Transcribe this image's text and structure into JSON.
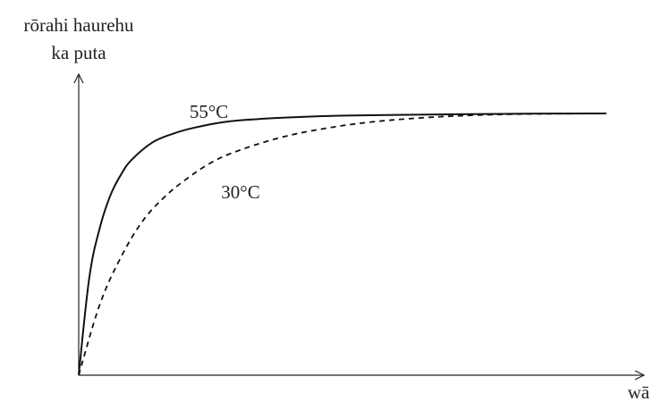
{
  "chart_data": {
    "type": "line",
    "title": "",
    "ylabel_lines": [
      "rōrahi haurehu",
      "ka puta"
    ],
    "xlabel": "wā",
    "xlim": [
      0,
      100
    ],
    "ylim": [
      0,
      100
    ],
    "x_ticks_shown": false,
    "y_ticks_shown": false,
    "grid": false,
    "series": [
      {
        "name": "55°C",
        "style": "solid",
        "color": "#111111",
        "x": [
          0,
          2,
          4,
          6,
          8,
          10,
          14,
          18,
          22,
          28,
          35,
          45,
          55,
          70,
          85,
          100
        ],
        "y": [
          0,
          33,
          50,
          61,
          68,
          73,
          79,
          82,
          84,
          86,
          87,
          87.8,
          88.2,
          88.5,
          88.7,
          88.8
        ]
      },
      {
        "name": "30°C",
        "style": "dashed",
        "color": "#111111",
        "x": [
          0,
          4,
          8,
          12,
          16,
          20,
          25,
          30,
          38,
          46,
          55,
          65,
          75,
          85,
          100
        ],
        "y": [
          0,
          24,
          40,
          52,
          60,
          66,
          72,
          76,
          80.5,
          83.5,
          85.8,
          87.3,
          88.2,
          88.6,
          88.8
        ]
      }
    ],
    "annotations": [
      {
        "text": "55°C",
        "series": "55°C"
      },
      {
        "text": "30°C",
        "series": "30°C"
      }
    ]
  }
}
